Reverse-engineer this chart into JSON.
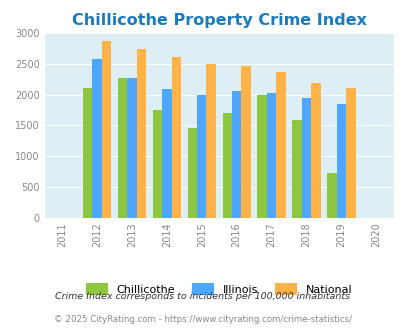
{
  "title": "Chillicothe Property Crime Index",
  "years": [
    2011,
    2012,
    2013,
    2014,
    2015,
    2016,
    2017,
    2018,
    2019,
    2020
  ],
  "categories": [
    "Chillicothe",
    "Illinois",
    "National"
  ],
  "data": {
    "Chillicothe": [
      null,
      2100,
      2275,
      1750,
      1450,
      1700,
      1990,
      1590,
      730,
      null
    ],
    "Illinois": [
      null,
      2580,
      2275,
      2090,
      2000,
      2060,
      2020,
      1940,
      1850,
      null
    ],
    "National": [
      null,
      2870,
      2740,
      2610,
      2500,
      2470,
      2360,
      2190,
      2100,
      null
    ]
  },
  "colors": {
    "Chillicothe": "#8dc63f",
    "Illinois": "#4da6ff",
    "National": "#ffb347"
  },
  "ylim": [
    0,
    3000
  ],
  "yticks": [
    0,
    500,
    1000,
    1500,
    2000,
    2500,
    3000
  ],
  "xlim": [
    2010.5,
    2020.5
  ],
  "title_color": "#1a7abf",
  "title_fontsize": 11.5,
  "bg_color": "#ddeef5",
  "footnote1": "Crime Index corresponds to incidents per 100,000 inhabitants",
  "footnote2": "© 2025 CityRating.com - https://www.cityrating.com/crime-statistics/",
  "bar_width": 0.27
}
